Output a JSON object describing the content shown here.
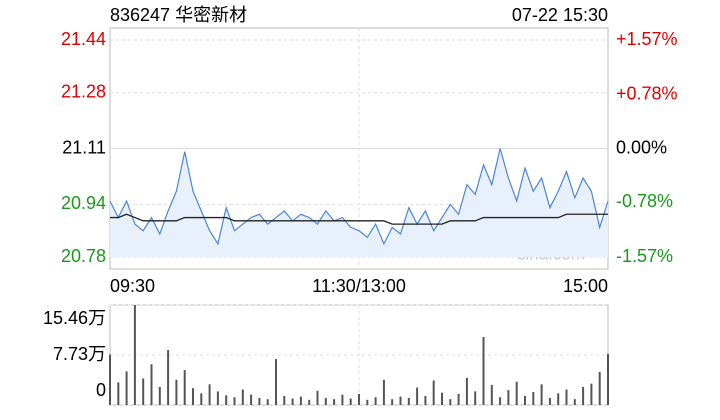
{
  "chart_data": [
    {
      "type": "line",
      "title": "836247 华密新材",
      "subtitle": "07-22 15:30",
      "annotation": "sina.com",
      "x": [
        0,
        4,
        8,
        12,
        16,
        20,
        24,
        28,
        32,
        36,
        40,
        44,
        48,
        52,
        56,
        60,
        64,
        68,
        72,
        76,
        80,
        84,
        88,
        92,
        96,
        100,
        104,
        108,
        112,
        116,
        120,
        124,
        128,
        132,
        136,
        140,
        144,
        148,
        152,
        156,
        160,
        164,
        168,
        172,
        176,
        180,
        184,
        188,
        192,
        196,
        200,
        204,
        208,
        212,
        216,
        220,
        224,
        228,
        232,
        236,
        240
      ],
      "series": [
        {
          "color": "#4a86d8",
          "fill": "#e8f0fb",
          "values": [
            20.95,
            20.9,
            20.95,
            20.88,
            20.86,
            20.9,
            20.85,
            20.92,
            20.98,
            21.1,
            20.98,
            20.92,
            20.86,
            20.82,
            20.93,
            20.86,
            20.88,
            20.9,
            20.91,
            20.88,
            20.9,
            20.92,
            20.89,
            20.91,
            20.9,
            20.88,
            20.92,
            20.89,
            20.9,
            20.87,
            20.86,
            20.84,
            20.88,
            20.82,
            20.87,
            20.85,
            20.93,
            20.88,
            20.92,
            20.86,
            20.9,
            20.94,
            20.91,
            21.0,
            20.97,
            21.06,
            21.0,
            21.11,
            21.02,
            20.95,
            21.05,
            20.98,
            21.02,
            20.93,
            20.98,
            21.04,
            20.96,
            21.02,
            20.98,
            20.87,
            20.95
          ]
        },
        {
          "color": "#222222",
          "values": [
            20.9,
            20.9,
            20.91,
            20.9,
            20.89,
            20.89,
            20.89,
            20.89,
            20.89,
            20.9,
            20.9,
            20.9,
            20.9,
            20.9,
            20.9,
            20.89,
            20.89,
            20.89,
            20.89,
            20.89,
            20.89,
            20.89,
            20.89,
            20.89,
            20.89,
            20.89,
            20.89,
            20.89,
            20.89,
            20.89,
            20.89,
            20.89,
            20.89,
            20.89,
            20.88,
            20.88,
            20.88,
            20.88,
            20.88,
            20.88,
            20.88,
            20.89,
            20.89,
            20.89,
            20.89,
            20.9,
            20.9,
            20.9,
            20.9,
            20.9,
            20.9,
            20.9,
            20.9,
            20.9,
            20.9,
            20.91,
            20.91,
            20.91,
            20.91,
            20.91,
            20.91
          ]
        }
      ],
      "xlim": [
        0,
        240
      ],
      "xticks": [
        {
          "value": 0,
          "label": "09:30"
        },
        {
          "value": 120,
          "label": "11:30/13:00"
        },
        {
          "value": 240,
          "label": "15:00"
        }
      ],
      "ylim": [
        20.78,
        21.44
      ],
      "yticks": [
        20.78,
        20.94,
        21.11,
        21.28,
        21.44
      ],
      "y2lim": [
        -1.57,
        1.57
      ],
      "y2ticks": [
        {
          "value": -1.57,
          "label": "-1.57%"
        },
        {
          "value": -0.78,
          "label": "-0.78%"
        },
        {
          "value": 0,
          "label": "0.00%"
        },
        {
          "value": 0.78,
          "label": "+0.78%"
        },
        {
          "value": 1.57,
          "label": "+1.57%"
        }
      ],
      "up_color": "#e00000",
      "down_color": "#1a9a1a",
      "flat_color": "#000000",
      "grid": true
    },
    {
      "type": "bar",
      "color": "#555555",
      "x": [
        0,
        4,
        8,
        12,
        16,
        20,
        24,
        28,
        32,
        36,
        40,
        44,
        48,
        52,
        56,
        60,
        64,
        68,
        72,
        76,
        80,
        84,
        88,
        92,
        96,
        100,
        104,
        108,
        112,
        116,
        120,
        124,
        128,
        132,
        136,
        140,
        144,
        148,
        152,
        156,
        160,
        164,
        168,
        172,
        176,
        180,
        184,
        188,
        192,
        196,
        200,
        204,
        208,
        212,
        216,
        220,
        224,
        228,
        232,
        236,
        240
      ],
      "values": [
        7.8,
        3.5,
        5.2,
        15.46,
        4.1,
        6.3,
        2.8,
        8.5,
        3.9,
        5.4,
        2.6,
        1.8,
        3.2,
        2.1,
        1.5,
        1.2,
        2.4,
        1.6,
        1.1,
        0.9,
        7.1,
        1.4,
        1.0,
        1.3,
        0.8,
        2.2,
        1.1,
        0.9,
        1.6,
        1.0,
        1.7,
        0.8,
        1.2,
        3.9,
        0.9,
        1.3,
        1.1,
        2.7,
        1.4,
        3.8,
        1.9,
        0.9,
        1.7,
        4.2,
        2.1,
        10.5,
        3.1,
        1.2,
        2.3,
        3.6,
        1.4,
        2.0,
        3.2,
        1.1,
        1.8,
        2.4,
        0.9,
        2.8,
        3.3,
        5.1,
        7.9
      ],
      "xlim": [
        0,
        240
      ],
      "xticks": [
        0,
        120,
        240
      ],
      "ylim": [
        0,
        15.46
      ],
      "yticks": [
        0,
        {
          "value": 7.73,
          "label": "7.73万"
        },
        {
          "value": 15.46,
          "label": "15.46万"
        }
      ]
    }
  ]
}
